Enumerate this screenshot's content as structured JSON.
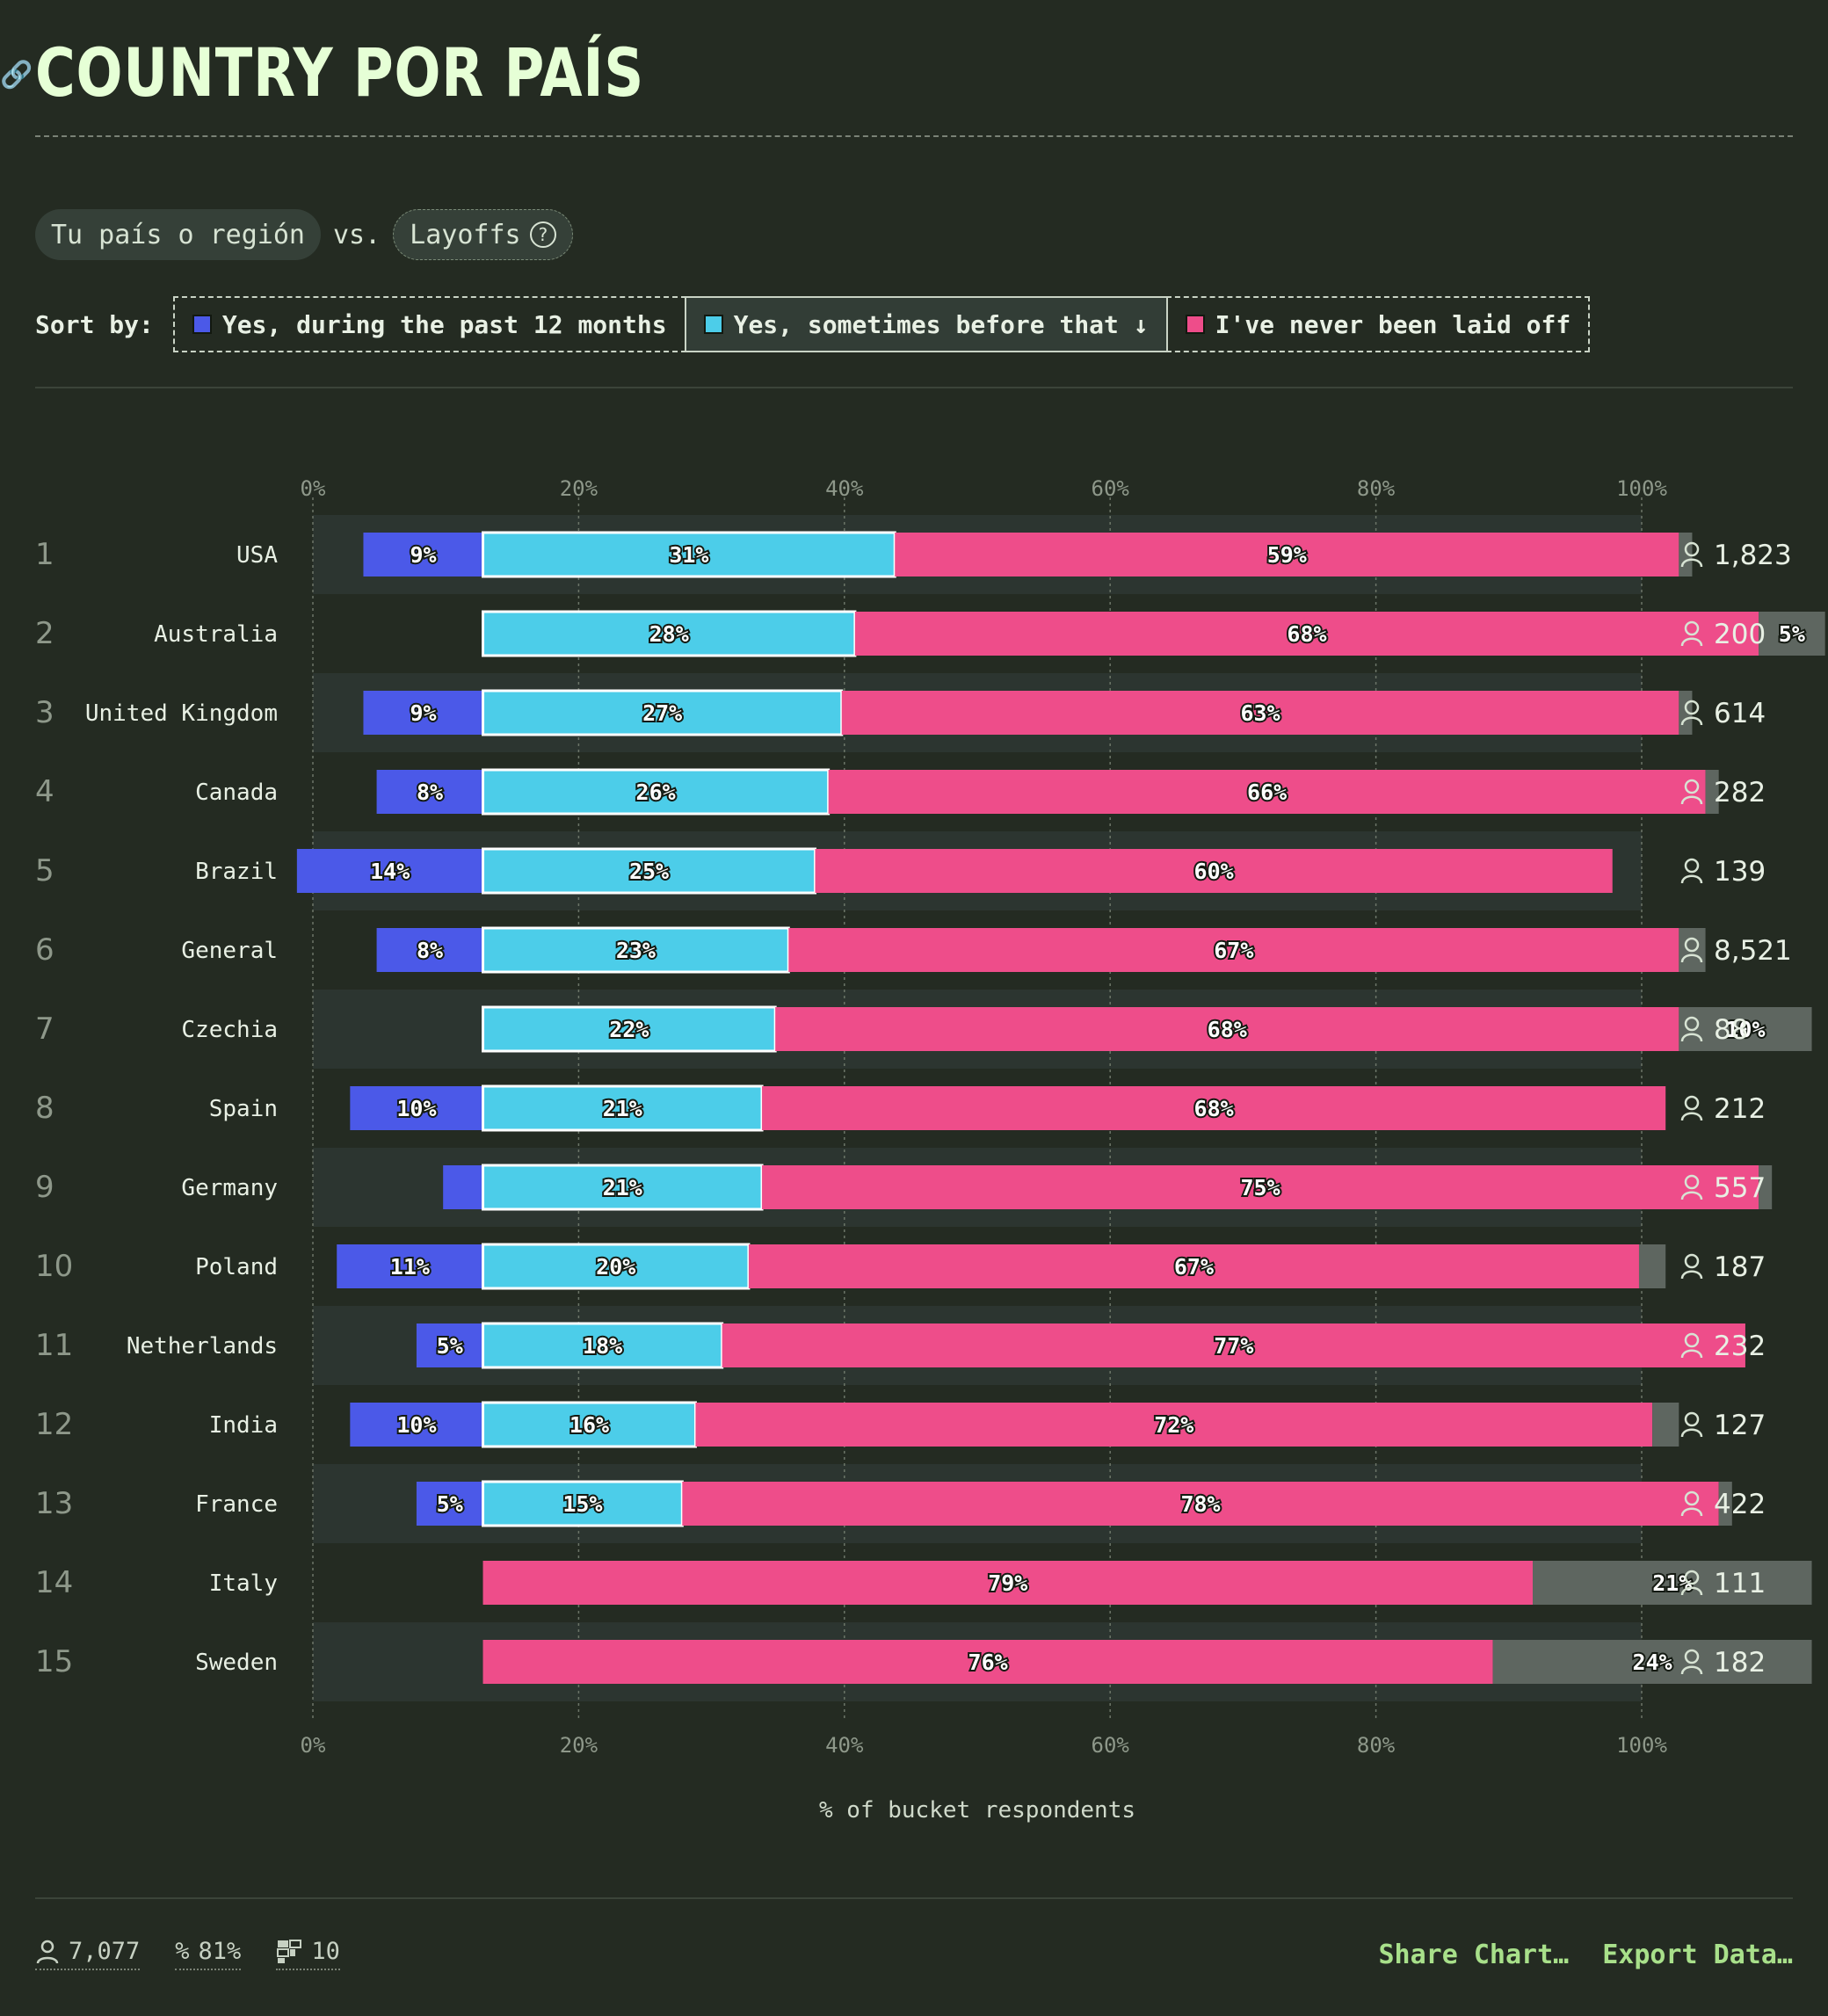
{
  "title": "COUNTRY POR PAÍS",
  "compare": {
    "left_pill": "Tu país o región",
    "vs": "vs.",
    "right_pill": "Layoffs"
  },
  "sort": {
    "label": "Sort by:",
    "options": [
      {
        "label": "Yes, during the past 12 months",
        "color": "#4b59e8"
      },
      {
        "label": "Yes, sometimes before that ↓",
        "color": "#4ccde9",
        "active": true
      },
      {
        "label": "I've never been laid off",
        "color": "#ee4d8a"
      }
    ]
  },
  "chart_data": {
    "type": "bar",
    "stacked": true,
    "orientation": "horizontal",
    "xlabel": "% of bucket respondents",
    "x_ticks": [
      "0%",
      "20%",
      "40%",
      "60%",
      "80%",
      "100%"
    ],
    "xlim": [
      0,
      100
    ],
    "grid": true,
    "colors": {
      "past12": "#4b59e8",
      "before": "#4ccde9",
      "never": "#ee4d8a",
      "other": "#5e6660"
    },
    "series": [
      {
        "key": "past12",
        "name": "Yes, during the past 12 months"
      },
      {
        "key": "before",
        "name": "Yes, sometimes before that"
      },
      {
        "key": "never",
        "name": "I've never been laid off"
      },
      {
        "key": "other"
      }
    ],
    "rows": [
      {
        "rank": "1",
        "label": "USA",
        "count": "1,823",
        "past12": 9,
        "before": 31,
        "never": 59,
        "other": 1,
        "past12_label": "9%",
        "before_label": "31%",
        "never_label": "59%",
        "other_label": ""
      },
      {
        "rank": "2",
        "label": "Australia",
        "count": "200",
        "past12": 0,
        "before": 28,
        "never": 68,
        "other": 5,
        "past12_label": "",
        "before_label": "28%",
        "never_label": "68%",
        "other_label": "5%"
      },
      {
        "rank": "3",
        "label": "United Kingdom",
        "count": "614",
        "past12": 9,
        "before": 27,
        "never": 63,
        "other": 1,
        "past12_label": "9%",
        "before_label": "27%",
        "never_label": "63%",
        "other_label": ""
      },
      {
        "rank": "4",
        "label": "Canada",
        "count": "282",
        "past12": 8,
        "before": 26,
        "never": 66,
        "other": 1,
        "past12_label": "8%",
        "before_label": "26%",
        "never_label": "66%",
        "other_label": ""
      },
      {
        "rank": "5",
        "label": "Brazil",
        "count": "139",
        "past12": 14,
        "before": 25,
        "never": 60,
        "other": 0,
        "past12_label": "14%",
        "before_label": "25%",
        "never_label": "60%",
        "other_label": ""
      },
      {
        "rank": "6",
        "label": "General",
        "count": "8,521",
        "past12": 8,
        "before": 23,
        "never": 67,
        "other": 2,
        "past12_label": "8%",
        "before_label": "23%",
        "never_label": "67%",
        "other_label": ""
      },
      {
        "rank": "7",
        "label": "Czechia",
        "count": "88",
        "past12": 0,
        "before": 22,
        "never": 68,
        "other": 10,
        "past12_label": "",
        "before_label": "22%",
        "never_label": "68%",
        "other_label": "10%"
      },
      {
        "rank": "8",
        "label": "Spain",
        "count": "212",
        "past12": 10,
        "before": 21,
        "never": 68,
        "other": 0,
        "past12_label": "10%",
        "before_label": "21%",
        "never_label": "68%",
        "other_label": ""
      },
      {
        "rank": "9",
        "label": "Germany",
        "count": "557",
        "past12": 3,
        "before": 21,
        "never": 75,
        "other": 1,
        "past12_label": "",
        "before_label": "21%",
        "never_label": "75%",
        "other_label": ""
      },
      {
        "rank": "10",
        "label": "Poland",
        "count": "187",
        "past12": 11,
        "before": 20,
        "never": 67,
        "other": 2,
        "past12_label": "11%",
        "before_label": "20%",
        "never_label": "67%",
        "other_label": ""
      },
      {
        "rank": "11",
        "label": "Netherlands",
        "count": "232",
        "past12": 5,
        "before": 18,
        "never": 77,
        "other": 0,
        "past12_label": "5%",
        "before_label": "18%",
        "never_label": "77%",
        "other_label": ""
      },
      {
        "rank": "12",
        "label": "India",
        "count": "127",
        "past12": 10,
        "before": 16,
        "never": 72,
        "other": 2,
        "past12_label": "10%",
        "before_label": "16%",
        "never_label": "72%",
        "other_label": ""
      },
      {
        "rank": "13",
        "label": "France",
        "count": "422",
        "past12": 5,
        "before": 15,
        "never": 78,
        "other": 1,
        "past12_label": "5%",
        "before_label": "15%",
        "never_label": "78%",
        "other_label": ""
      },
      {
        "rank": "14",
        "label": "Italy",
        "count": "111",
        "past12": 0,
        "before": 0,
        "never": 79,
        "other": 21,
        "past12_label": "",
        "before_label": "",
        "never_label": "79%",
        "other_label": "21%"
      },
      {
        "rank": "15",
        "label": "Sweden",
        "count": "182",
        "past12": 0,
        "before": 0,
        "never": 76,
        "other": 24,
        "past12_label": "",
        "before_label": "",
        "never_label": "76%",
        "other_label": "24%"
      }
    ]
  },
  "footer": {
    "respondents": "7,077",
    "percent": "81%",
    "buckets": "10",
    "share": "Share Chart…",
    "export": "Export Data…"
  }
}
